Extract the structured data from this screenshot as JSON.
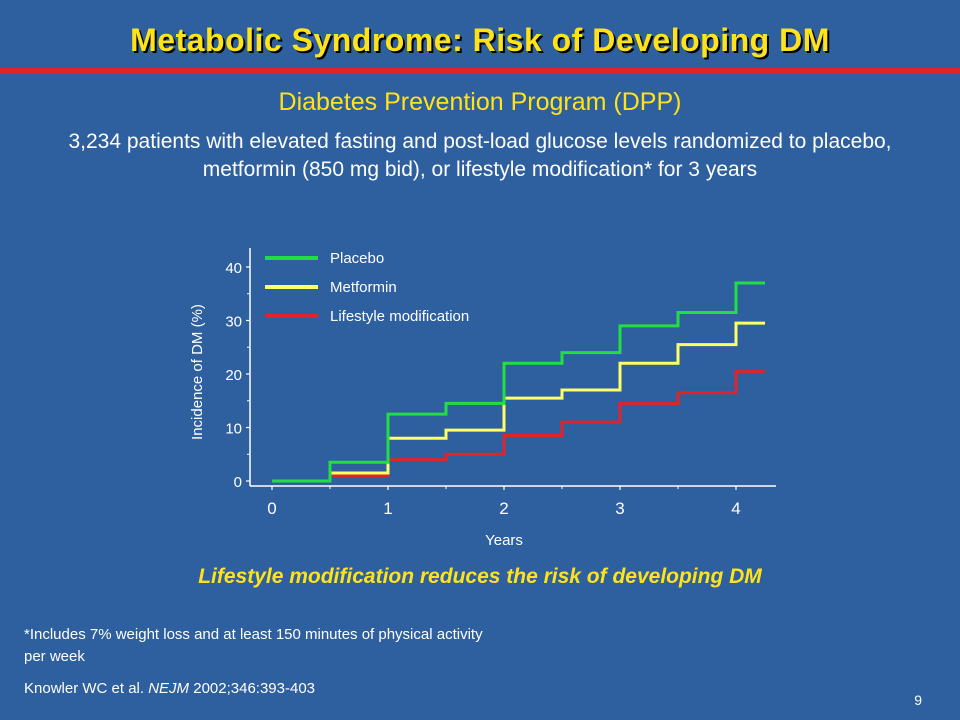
{
  "slide": {
    "title": "Metabolic Syndrome: Risk of Developing DM",
    "subtitle": "Diabetes Prevention Program (DPP)",
    "description": "3,234 patients with elevated fasting and post-load glucose levels randomized to placebo, metformin (850 mg bid), or lifestyle modification* for 3 years",
    "takeaway": "Lifestyle modification reduces the risk of developing DM",
    "footnote": "*Includes 7% weight loss and at least 150 minutes of physical activity per week",
    "citation_prefix": "Knowler WC et al. ",
    "citation_journal": "NEJM",
    "citation_suffix": " 2002;346:393-403",
    "page_number": "9",
    "colors": {
      "background": "#2e5f9e",
      "title": "#ffe31a",
      "rule": "#e0252a"
    }
  },
  "chart_data": {
    "type": "line",
    "step": true,
    "xlabel": "Years",
    "ylabel": "Incidence of DM (%)",
    "xlim": [
      0,
      4.2
    ],
    "ylim": [
      0,
      40
    ],
    "xticks": [
      "0",
      "1",
      "2",
      "3",
      "4"
    ],
    "yticks": [
      "0",
      "10",
      "20",
      "30",
      "40"
    ],
    "grid": false,
    "legend_position": "top-left",
    "series": [
      {
        "name": "Placebo",
        "color": "#22dd44",
        "x": [
          0,
          0.5,
          1,
          1.5,
          2,
          2.5,
          3,
          3.5,
          4,
          4.25
        ],
        "y": [
          0,
          3.5,
          12.5,
          14.5,
          22,
          24,
          29,
          31.5,
          37,
          37
        ]
      },
      {
        "name": "Metformin",
        "color": "#ffff66",
        "x": [
          0,
          0.5,
          1,
          1.5,
          2,
          2.5,
          3,
          3.5,
          4,
          4.25
        ],
        "y": [
          0,
          1.5,
          8,
          9.5,
          15.5,
          17,
          22,
          25.5,
          29.5,
          29.5
        ]
      },
      {
        "name": "Lifestyle modification",
        "color": "#e0252a",
        "x": [
          0,
          0.5,
          1,
          1.5,
          2,
          2.5,
          3,
          3.5,
          4,
          4.25
        ],
        "y": [
          0,
          1,
          4,
          5,
          8.5,
          11,
          14.5,
          16.5,
          20.5,
          20.5
        ]
      }
    ]
  }
}
